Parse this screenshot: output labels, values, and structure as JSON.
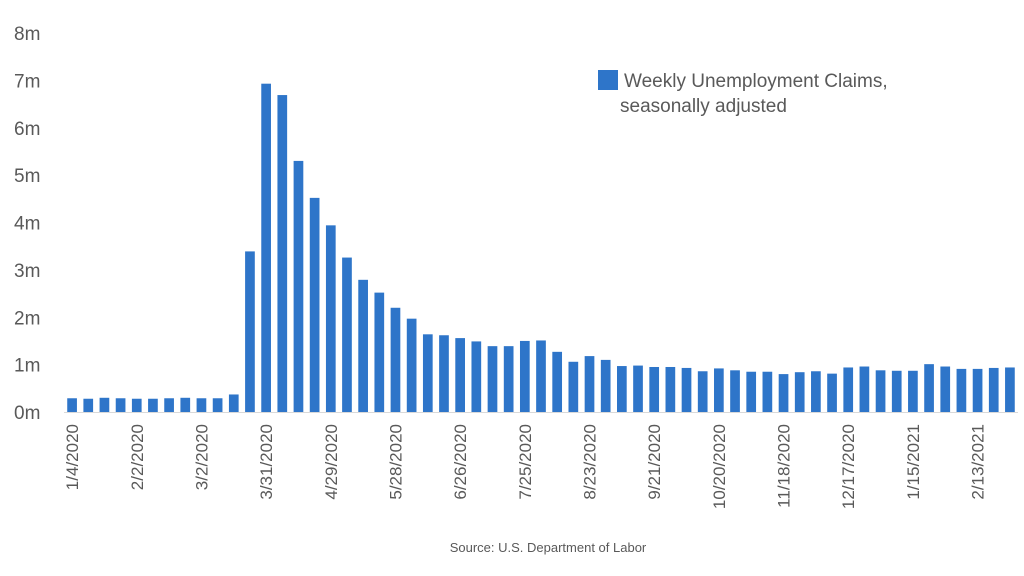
{
  "chart_data": {
    "type": "bar",
    "title": "",
    "xlabel": "",
    "ylabel": "",
    "ylim": [
      0,
      8000000
    ],
    "yticks": [
      0,
      1000000,
      2000000,
      3000000,
      4000000,
      5000000,
      6000000,
      7000000,
      8000000
    ],
    "ytick_labels": [
      "0m",
      "1m",
      "2m",
      "3m",
      "4m",
      "5m",
      "6m",
      "7m",
      "8m"
    ],
    "grid": false,
    "legend_position": "top-right",
    "xtick_labels": [
      {
        "index": 0,
        "label": "1/4/2020"
      },
      {
        "index": 4,
        "label": "2/2/2020"
      },
      {
        "index": 8,
        "label": "3/2/2020"
      },
      {
        "index": 12,
        "label": "3/31/2020"
      },
      {
        "index": 16,
        "label": "4/29/2020"
      },
      {
        "index": 20,
        "label": "5/28/2020"
      },
      {
        "index": 24,
        "label": "6/26/2020"
      },
      {
        "index": 28,
        "label": "7/25/2020"
      },
      {
        "index": 32,
        "label": "8/23/2020"
      },
      {
        "index": 36,
        "label": "9/21/2020"
      },
      {
        "index": 40,
        "label": "10/20/2020"
      },
      {
        "index": 44,
        "label": "11/18/2020"
      },
      {
        "index": 48,
        "label": "12/17/2020"
      },
      {
        "index": 52,
        "label": "1/15/2021"
      },
      {
        "index": 56,
        "label": "2/13/2021"
      }
    ],
    "series": [
      {
        "name": "Weekly Unemployment Claims, seasonally adjusted",
        "color": "#2e75c9",
        "values": [
          290000,
          280000,
          300000,
          290000,
          280000,
          280000,
          290000,
          300000,
          290000,
          290000,
          370000,
          3390000,
          6930000,
          6690000,
          5300000,
          4520000,
          3940000,
          3260000,
          2790000,
          2520000,
          2200000,
          1970000,
          1640000,
          1620000,
          1560000,
          1490000,
          1390000,
          1390000,
          1500000,
          1510000,
          1270000,
          1060000,
          1180000,
          1100000,
          970000,
          980000,
          950000,
          950000,
          930000,
          860000,
          920000,
          880000,
          850000,
          850000,
          800000,
          840000,
          860000,
          810000,
          940000,
          960000,
          880000,
          870000,
          870000,
          1010000,
          960000,
          910000,
          910000,
          930000,
          940000
        ]
      }
    ],
    "legend": {
      "lines": [
        "Weekly Unemployment Claims,",
        "seasonally adjusted"
      ]
    },
    "source": "Source: U.S. Department of Labor"
  }
}
